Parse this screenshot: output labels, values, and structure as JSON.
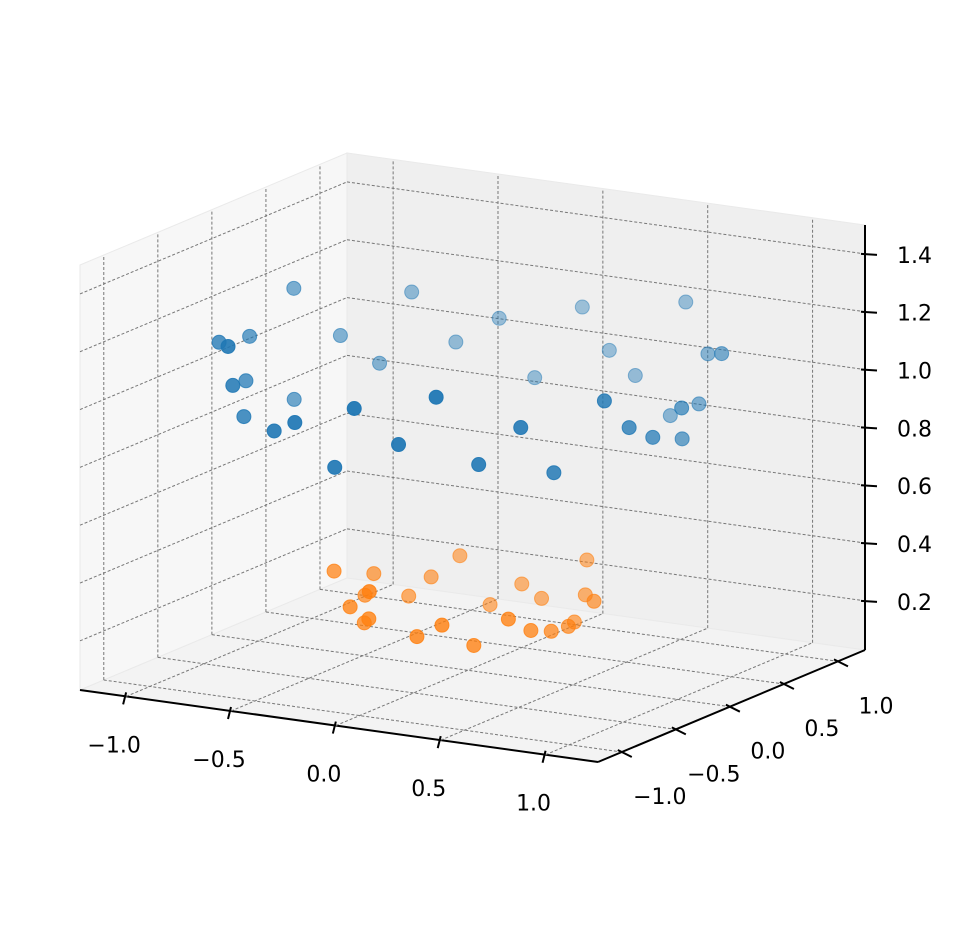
{
  "chart_data": {
    "type": "scatter3d",
    "xlim": [
      -1.22,
      1.25
    ],
    "ylim": [
      -1.22,
      1.25
    ],
    "zlim": [
      0.03,
      1.5
    ],
    "xticks": [
      {
        "value": -1,
        "label": "−1.0"
      },
      {
        "value": -0.5,
        "label": "−0.5"
      },
      {
        "value": 0,
        "label": "0.0"
      },
      0.5,
      {
        "value": 1,
        "label": "1.0"
      }
    ],
    "yticks": [
      {
        "value": -1,
        "label": "−1.0"
      },
      {
        "value": -0.5,
        "label": "−0.5"
      },
      {
        "value": 0,
        "label": "0.0"
      },
      0.5,
      {
        "value": 1,
        "label": "1.0"
      }
    ],
    "zticks": [
      0.2,
      0.4,
      0.6,
      0.8,
      {
        "value": 1,
        "label": "1.0"
      },
      1.2,
      1.4
    ],
    "grid": true,
    "series": [
      {
        "color": "#1f77b4",
        "x": [
          1.02,
          0.94,
          1.02,
          0.85,
          0.8,
          0.6,
          0.55,
          0.33,
          0.17,
          0,
          -0.16,
          -0.35,
          -0.5,
          -0.69,
          -0.74,
          -0.87,
          -1.02,
          -0.91,
          -1.04,
          -0.97,
          -1.0,
          -0.82,
          -0.78,
          -0.71,
          -0.49,
          -0.34,
          -0.16,
          0,
          0.17,
          0.37,
          0.48,
          0.66,
          0.72,
          0.93,
          0.95,
          0.97
        ],
        "y": [
          0,
          0.16,
          0.37,
          0.49,
          0.67,
          0.71,
          0.95,
          0.91,
          0.98,
          1.06,
          0.93,
          0.97,
          0.86,
          0.82,
          0.62,
          0.51,
          0.37,
          0.16,
          0,
          -0.17,
          -0.36,
          -0.48,
          -0.66,
          -0.84,
          -0.84,
          -0.94,
          -0.92,
          -1.05,
          -0.97,
          -1.01,
          -0.83,
          -0.79,
          -0.6,
          -0.54,
          -0.35,
          -0.17
        ],
        "z": [
          1.04,
          0.9,
          1.17,
          0.96,
          1.1,
          0.86,
          1.21,
          0.94,
          1.0,
          1.12,
          0.88,
          1.06,
          0.98,
          1.14,
          0.92,
          1.02,
          1.19,
          0.85,
          1.08,
          0.96,
          1.12,
          0.9,
          1.04,
          1.21,
          0.94,
          1.0,
          0.86,
          1.1,
          0.98,
          1.17,
          0.92,
          1.06,
          0.88,
          1.14,
          1.02,
          0.96
        ]
      },
      {
        "color": "#ff7f0e",
        "x": [
          0.48,
          0.53,
          0.39,
          0.37,
          0.3,
          0.12,
          0,
          -0.11,
          -0.29,
          -0.36,
          -0.4,
          -0.52,
          -0.49,
          -0.56,
          -0.38,
          -0.37,
          -0.25,
          -0.16,
          0,
          0.14,
          0.23,
          0.4,
          0.43,
          0.46
        ],
        "y": [
          0,
          0.14,
          0.23,
          0.37,
          0.52,
          0.45,
          0.5,
          0.42,
          0.49,
          0.36,
          0.23,
          0.14,
          0,
          -0.15,
          -0.22,
          -0.37,
          -0.43,
          -0.6,
          -0.47,
          -0.51,
          -0.39,
          -0.4,
          -0.25,
          -0.12
        ],
        "z": [
          0.23,
          0.3,
          0.2,
          0.27,
          0.36,
          0.22,
          0.25,
          0.18,
          0.32,
          0.26,
          0.21,
          0.29,
          0.24,
          0.34,
          0.19,
          0.27,
          0.25,
          0.38,
          0.22,
          0.28,
          0.2,
          0.31,
          0.25,
          0.23
        ]
      }
    ]
  }
}
